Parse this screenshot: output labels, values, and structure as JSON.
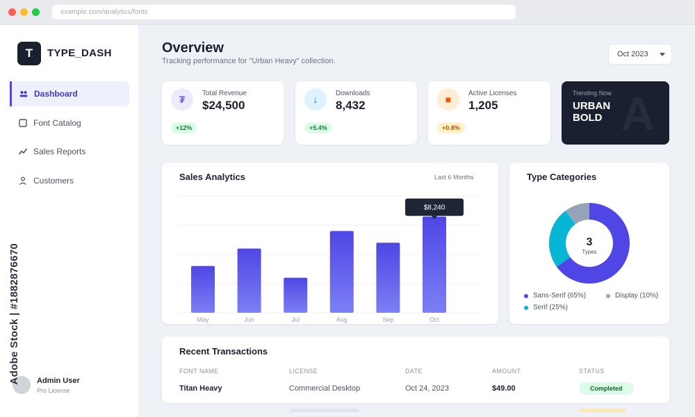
{
  "browser": {
    "url": "example.com/analytics/fonts"
  },
  "brand": {
    "logo_letter": "T",
    "name": "TYPE_DASH"
  },
  "sidebar": {
    "items": [
      {
        "label": "Dashboard",
        "icon": "users-icon",
        "active": true
      },
      {
        "label": "Font Catalog",
        "icon": "square-icon",
        "active": false
      },
      {
        "label": "Sales Reports",
        "icon": "trend-icon",
        "active": false
      },
      {
        "label": "Customers",
        "icon": "user-icon",
        "active": false
      }
    ],
    "user": {
      "name": "Admin User",
      "role": "Pro License"
    }
  },
  "header": {
    "title": "Overview",
    "subtitle": "Tracking performance for \"Urban Heavy\" collection.",
    "date_select": "Oct 2023"
  },
  "stats": [
    {
      "label": "Total Revenue",
      "value": "$24,500",
      "badge": "+12%",
      "icon": "currency-icon",
      "icon_glyph": "₮",
      "icon_color": "#6d5ce8",
      "icon_bg": "#eceafd",
      "badge_color": "#15803d",
      "badge_bg": "#dcfce7"
    },
    {
      "label": "Downloads",
      "value": "8,432",
      "badge": "+5.4%",
      "icon": "download-arrow-icon",
      "icon_glyph": "↓",
      "icon_color": "#0284c7",
      "icon_bg": "#e0f2fe",
      "badge_color": "#15803d",
      "badge_bg": "#dcfce7"
    },
    {
      "label": "Active Licenses",
      "value": "1,205",
      "badge": "+0.8%",
      "icon": "license-icon",
      "icon_glyph": "■",
      "icon_color": "#ea580c",
      "icon_bg": "#ffedd5",
      "badge_color": "#b45309",
      "badge_bg": "#fef3c7"
    }
  ],
  "trending": {
    "label": "Trending Now",
    "value": "URBAN BOLD",
    "logo_glyph": "A"
  },
  "sales": {
    "title": "Sales Analytics",
    "period": "Last 6 Months",
    "tooltip": "$8,240"
  },
  "categories_card": {
    "title": "Type Categories",
    "center_value": "3",
    "center_label": "Types"
  },
  "transactions": {
    "title": "Recent Transactions",
    "columns": [
      "FONT NAME",
      "LICENSE",
      "DATE",
      "AMOUNT",
      "STATUS"
    ],
    "rows": [
      {
        "font": "Titan Heavy",
        "license": "Commercial Desktop",
        "date": "Oct 24, 2023",
        "amount": "$49.00",
        "status": "Completed"
      }
    ]
  },
  "watermark": "Adobe Stock | #1882876670",
  "chart_data": [
    {
      "type": "bar",
      "title": "Sales Analytics",
      "categories": [
        "May",
        "Jun",
        "Jul",
        "Aug",
        "Sep",
        "Oct"
      ],
      "values": [
        4000,
        5500,
        3000,
        7000,
        6000,
        8240
      ],
      "ylim": [
        0,
        10000
      ],
      "grid": true,
      "colors": {
        "top": "#4f46e5",
        "bottom": "#7c7ff5"
      }
    },
    {
      "type": "pie",
      "title": "Type Categories",
      "labels": [
        "Sans-Serif (65%)",
        "Serif (25%)",
        "Display (10%)"
      ],
      "values": [
        65,
        25,
        10
      ],
      "colors": [
        "#4f46e5",
        "#06b6d4",
        "#94a3b8"
      ],
      "legend": "bottom"
    }
  ]
}
